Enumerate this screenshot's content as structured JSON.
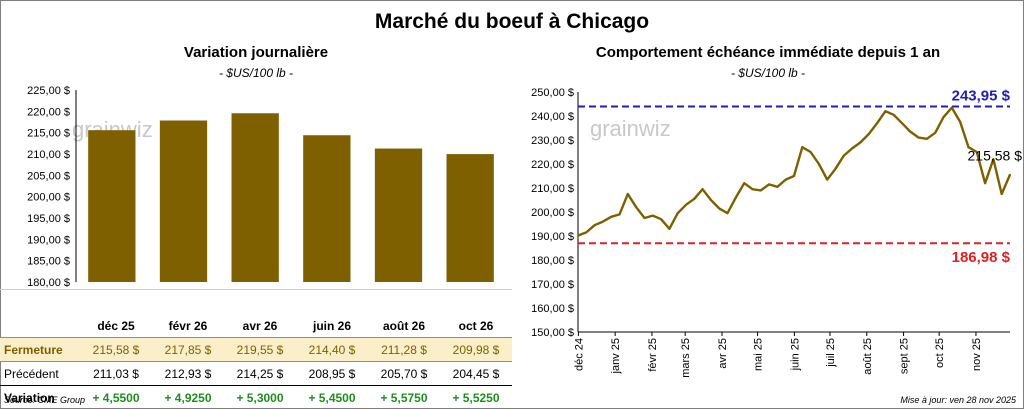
{
  "main_title": "Marché du boeuf à Chicago",
  "source": "Source: CME Group",
  "updated": "Mise à jour: ven 28 nov 2025",
  "watermark": "grainwiz",
  "colors": {
    "bar": "#7f6000",
    "line": "#7f6000",
    "high": "#1f1fb4",
    "low": "#e02020",
    "positive": "#1e8e1e"
  },
  "left": {
    "title": "Variation  journalière",
    "subtitle": "- $US/100 lb -",
    "table": {
      "months": [
        "déc 25",
        "févr 26",
        "avr 26",
        "juin 26",
        "août 26",
        "oct 26"
      ],
      "rows": [
        {
          "label": "Fermeture",
          "cells": [
            "215,58  $",
            "217,85  $",
            "219,55  $",
            "214,40  $",
            "211,28  $",
            "209,98  $"
          ]
        },
        {
          "label": "Précédent",
          "cells": [
            "211,03  $",
            "212,93  $",
            "214,25  $",
            "208,95  $",
            "205,70  $",
            "204,45  $"
          ]
        },
        {
          "label": "Variation",
          "cells": [
            "+ 4,5500",
            "+ 4,9250",
            "+ 5,3000",
            "+ 5,4500",
            "+ 5,5750",
            "+ 5,5250"
          ]
        }
      ]
    }
  },
  "right": {
    "title": "Comportement  échéance immédiate depuis 1 an",
    "subtitle": "- $US/100 lb -"
  },
  "chart_data": [
    {
      "type": "bar",
      "title": "Variation  journalière",
      "subtitle": "- $US/100 lb -",
      "categories": [
        "déc 25",
        "févr 26",
        "avr 26",
        "juin 26",
        "août 26",
        "oct 26"
      ],
      "values": [
        215.58,
        217.85,
        219.55,
        214.4,
        211.28,
        209.98
      ],
      "ylim": [
        180,
        225
      ],
      "yticks": [
        "180,00 $",
        "185,00 $",
        "190,00 $",
        "195,00 $",
        "200,00 $",
        "205,00 $",
        "210,00 $",
        "215,00 $",
        "220,00 $",
        "225,00 $"
      ],
      "grid": false
    },
    {
      "type": "line",
      "title": "Comportement  échéance immédiate depuis 1 an",
      "subtitle": "- $US/100 lb -",
      "ylim": [
        150,
        250
      ],
      "yticks": [
        "150,00 $",
        "160,00 $",
        "170,00 $",
        "180,00 $",
        "190,00 $",
        "200,00 $",
        "210,00 $",
        "220,00 $",
        "230,00 $",
        "240,00 $",
        "250,00 $"
      ],
      "xticks": [
        "déc 24",
        "janv 25",
        "févr 25",
        "mars 25",
        "avr 25",
        "mai 25",
        "juin 25",
        "juil 25",
        "août 25",
        "sept 25",
        "oct 25",
        "nov 25"
      ],
      "x_start": "2024-11-29",
      "x_end": "2025-11-28",
      "points": [
        [
          "2024-11-29",
          190.2
        ],
        [
          "2024-12-06",
          191.5
        ],
        [
          "2024-12-13",
          194.5
        ],
        [
          "2024-12-20",
          196.0
        ],
        [
          "2024-12-27",
          198.0
        ],
        [
          "2025-01-03",
          199.0
        ],
        [
          "2025-01-10",
          207.5
        ],
        [
          "2025-01-17",
          202.0
        ],
        [
          "2025-01-24",
          197.5
        ],
        [
          "2025-01-31",
          198.5
        ],
        [
          "2025-02-07",
          197.0
        ],
        [
          "2025-02-14",
          193.0
        ],
        [
          "2025-02-21",
          199.5
        ],
        [
          "2025-02-28",
          203.0
        ],
        [
          "2025-03-07",
          205.5
        ],
        [
          "2025-03-14",
          209.5
        ],
        [
          "2025-03-21",
          205.0
        ],
        [
          "2025-03-28",
          201.5
        ],
        [
          "2025-04-04",
          199.5
        ],
        [
          "2025-04-11",
          206.0
        ],
        [
          "2025-04-18",
          212.0
        ],
        [
          "2025-04-25",
          209.5
        ],
        [
          "2025-05-02",
          209.0
        ],
        [
          "2025-05-09",
          211.5
        ],
        [
          "2025-05-16",
          210.5
        ],
        [
          "2025-05-23",
          213.5
        ],
        [
          "2025-05-30",
          215.0
        ],
        [
          "2025-06-06",
          227.0
        ],
        [
          "2025-06-13",
          225.0
        ],
        [
          "2025-06-20",
          220.0
        ],
        [
          "2025-06-27",
          213.5
        ],
        [
          "2025-07-04",
          218.0
        ],
        [
          "2025-07-11",
          223.5
        ],
        [
          "2025-07-18",
          226.5
        ],
        [
          "2025-07-25",
          229.0
        ],
        [
          "2025-08-01",
          232.5
        ],
        [
          "2025-08-08",
          237.0
        ],
        [
          "2025-08-15",
          242.0
        ],
        [
          "2025-08-22",
          240.5
        ],
        [
          "2025-08-29",
          237.0
        ],
        [
          "2025-09-05",
          233.5
        ],
        [
          "2025-09-12",
          231.0
        ],
        [
          "2025-09-19",
          230.5
        ],
        [
          "2025-09-26",
          233.0
        ],
        [
          "2025-10-03",
          239.5
        ],
        [
          "2025-10-10",
          243.5
        ],
        [
          "2025-10-17",
          237.5
        ],
        [
          "2025-10-24",
          227.0
        ],
        [
          "2025-10-31",
          225.0
        ],
        [
          "2025-11-07",
          212.0
        ],
        [
          "2025-11-14",
          222.0
        ],
        [
          "2025-11-21",
          207.5
        ],
        [
          "2025-11-28",
          215.58
        ]
      ],
      "reference_lines": [
        {
          "label": "243,95 $",
          "value": 243.95,
          "color": "#1f1fb4"
        },
        {
          "label": "186,98 $",
          "value": 186.98,
          "color": "#e02020"
        }
      ],
      "end_label": "215,58 $",
      "grid": false
    }
  ]
}
